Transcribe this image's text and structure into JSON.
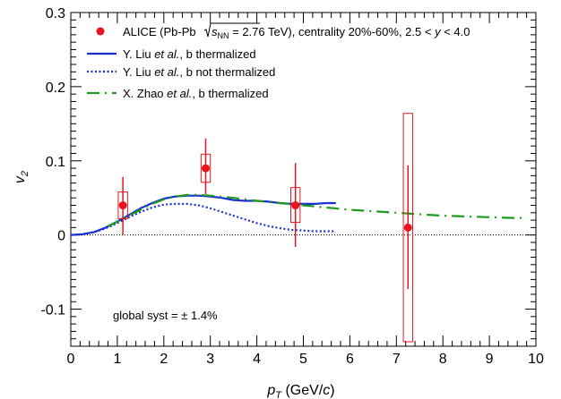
{
  "chart_data": {
    "type": "scatter",
    "xlabel_main": "p",
    "xlabel_sub": "T",
    "xlabel_unit_pre": " (GeV/",
    "xlabel_unit_italic": "c",
    "xlabel_unit_post": ")",
    "ylabel_main": "v",
    "ylabel_sub": "2",
    "xlim": [
      0,
      10
    ],
    "ylim": [
      -0.15,
      0.3
    ],
    "xticks": [
      0,
      1,
      2,
      3,
      4,
      5,
      6,
      7,
      8,
      9,
      10
    ],
    "xtick_labels": [
      "0",
      "1",
      "2",
      "3",
      "4",
      "5",
      "6",
      "7",
      "8",
      "9",
      "10"
    ],
    "yticks": [
      -0.1,
      0,
      0.1,
      0.2,
      0.3
    ],
    "ytick_labels": [
      "-0.1",
      "0",
      "0.1",
      "0.2",
      "0.3"
    ],
    "annotation": "global syst = ± 1.4%",
    "legend_position": "top",
    "legend": {
      "data": {
        "prefix": "ALICE (Pb-Pb ",
        "sqrt_s": "s",
        "sqrt_sub": "NN",
        "energy": " = 2.76 TeV), centrality 20%-60%, 2.5 < ",
        "y_var": "y",
        "suffix": " < 4.0"
      },
      "models": [
        {
          "author": "Y. Liu ",
          "etal": "et al.",
          "rest": ", b thermalized"
        },
        {
          "author": "Y. Liu ",
          "etal": "et al.",
          "rest": ", b not thermalized"
        },
        {
          "author": "X. Zhao ",
          "etal": "et al.",
          "rest": ", b thermalized"
        }
      ]
    },
    "points": [
      {
        "x": 1.12,
        "y": 0.04,
        "stat_low": 0.0,
        "stat_high": 0.078,
        "sys_low": 0.022,
        "sys_high": 0.058,
        "sys_halfwidth": 0.1
      },
      {
        "x": 2.9,
        "y": 0.09,
        "stat_low": 0.055,
        "stat_high": 0.13,
        "sys_low": 0.071,
        "sys_high": 0.109,
        "sys_halfwidth": 0.1
      },
      {
        "x": 4.83,
        "y": 0.04,
        "stat_low": -0.016,
        "stat_high": 0.097,
        "sys_low": 0.017,
        "sys_high": 0.064,
        "sys_halfwidth": 0.1
      },
      {
        "x": 7.25,
        "y": 0.01,
        "stat_low": -0.073,
        "stat_high": 0.094,
        "sys_low": -0.144,
        "sys_high": 0.164,
        "sys_halfwidth": 0.1
      }
    ],
    "series": [
      {
        "style": "solid",
        "color": "#1a2fd6",
        "x": [
          0,
          0.25,
          0.5,
          0.75,
          1.0,
          1.25,
          1.5,
          1.75,
          2.0,
          2.25,
          2.5,
          2.75,
          3.0,
          3.25,
          3.5,
          3.75,
          4.0,
          4.25,
          4.5,
          4.75,
          5.0,
          5.25,
          5.5,
          5.7
        ],
        "y": [
          0.0,
          0.001,
          0.004,
          0.01,
          0.018,
          0.027,
          0.036,
          0.043,
          0.049,
          0.052,
          0.053,
          0.053,
          0.052,
          0.05,
          0.047,
          0.046,
          0.046,
          0.045,
          0.043,
          0.042,
          0.042,
          0.042,
          0.043,
          0.043
        ]
      },
      {
        "style": "dotted",
        "color": "#1a2fd6",
        "x": [
          0,
          0.25,
          0.5,
          0.75,
          1.0,
          1.25,
          1.5,
          1.75,
          2.0,
          2.25,
          2.5,
          2.75,
          3.0,
          3.25,
          3.5,
          3.75,
          4.0,
          4.25,
          4.5,
          4.75,
          5.0,
          5.25,
          5.5,
          5.7
        ],
        "y": [
          0.0,
          0.001,
          0.004,
          0.009,
          0.016,
          0.024,
          0.031,
          0.037,
          0.041,
          0.042,
          0.042,
          0.04,
          0.036,
          0.031,
          0.026,
          0.021,
          0.016,
          0.012,
          0.009,
          0.007,
          0.006,
          0.005,
          0.005,
          0.005
        ]
      },
      {
        "style": "dashdot",
        "color": "#1e9a1e",
        "x": [
          0.8,
          1.0,
          1.25,
          1.5,
          1.75,
          2.0,
          2.25,
          2.5,
          2.75,
          3.0,
          3.5,
          4.0,
          4.5,
          5.0,
          5.5,
          6.0,
          6.5,
          7.0,
          7.5,
          8.0,
          8.5,
          9.0,
          9.5,
          9.75
        ],
        "y": [
          0.012,
          0.018,
          0.026,
          0.034,
          0.042,
          0.048,
          0.052,
          0.054,
          0.054,
          0.053,
          0.05,
          0.046,
          0.043,
          0.04,
          0.037,
          0.034,
          0.032,
          0.03,
          0.028,
          0.026,
          0.025,
          0.024,
          0.023,
          0.023
        ]
      }
    ]
  }
}
